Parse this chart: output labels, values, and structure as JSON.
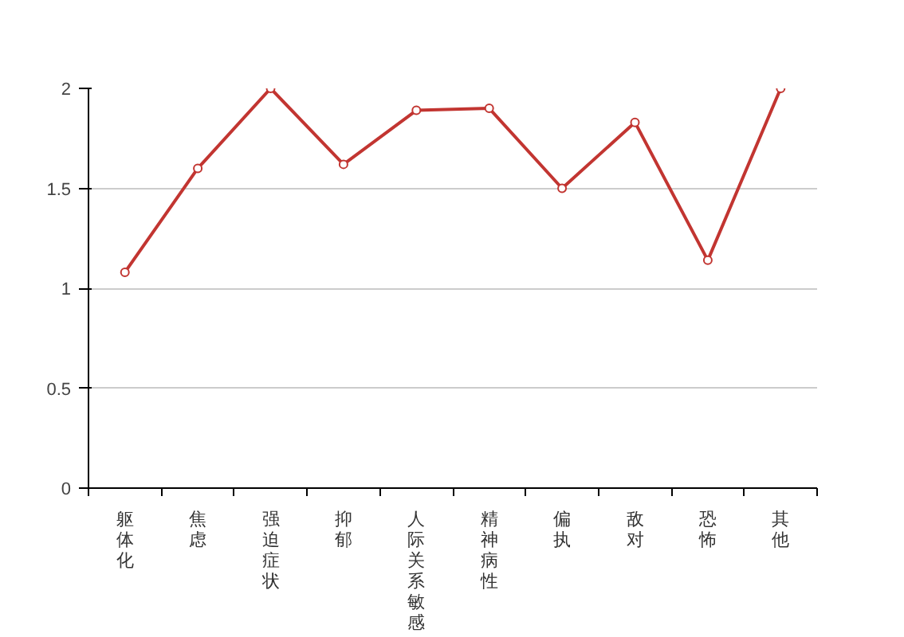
{
  "chart_data": {
    "type": "line",
    "categories": [
      "躯体化",
      "焦虑",
      "强迫症状",
      "抑郁",
      "人际关系敏感",
      "精神病性",
      "偏执",
      "敌对",
      "恐怖",
      "其他"
    ],
    "series": [
      {
        "color": "#c23531",
        "values": [
          1.08,
          1.6,
          2.0,
          1.62,
          1.89,
          1.9,
          1.5,
          1.83,
          1.14,
          2.0
        ]
      }
    ],
    "ylim": [
      0,
      2
    ],
    "yticks": [
      0,
      0.5,
      1,
      1.5,
      2
    ],
    "grid": "y",
    "marker": "circle",
    "line_style": "solid"
  }
}
